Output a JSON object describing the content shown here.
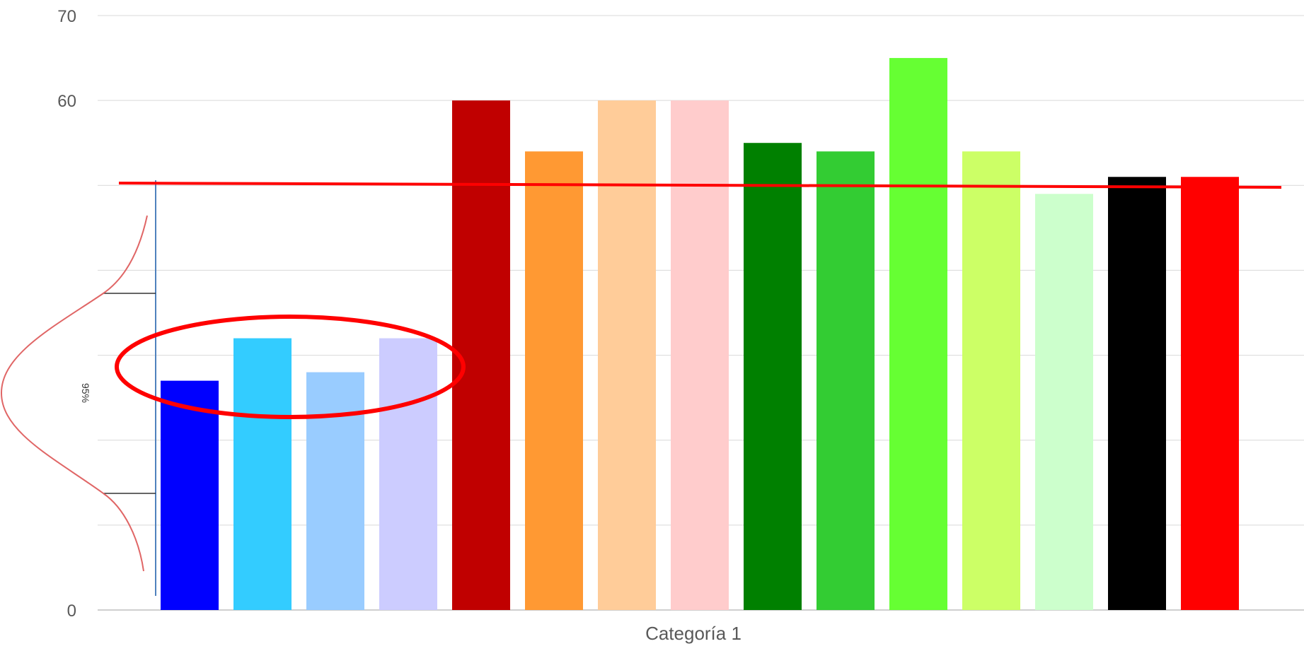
{
  "chart_data": {
    "type": "bar",
    "categories": [
      "Categoría 1"
    ],
    "series": [
      {
        "value": 27,
        "color": "#0000ff"
      },
      {
        "value": 32,
        "color": "#33ccff"
      },
      {
        "value": 28,
        "color": "#99ccff"
      },
      {
        "value": 32,
        "color": "#ccccff"
      },
      {
        "value": 60,
        "color": "#c00000"
      },
      {
        "value": 54,
        "color": "#ff9933"
      },
      {
        "value": 60,
        "color": "#ffcc99"
      },
      {
        "value": 60,
        "color": "#ffcccc"
      },
      {
        "value": 55,
        "color": "#008000"
      },
      {
        "value": 54,
        "color": "#33cc33"
      },
      {
        "value": 65,
        "color": "#66ff33"
      },
      {
        "value": 54,
        "color": "#ccff66"
      },
      {
        "value": 49,
        "color": "#ccffcc"
      },
      {
        "value": 51,
        "color": "#000000"
      },
      {
        "value": 51,
        "color": "#ff0000"
      }
    ],
    "ylim": [
      0,
      70
    ],
    "ytick_labels": [
      "0",
      "60",
      "70"
    ],
    "grid": true,
    "reference_line_value": 50.7,
    "annotation_text": "95%",
    "annotation_color": "#ff0000"
  }
}
